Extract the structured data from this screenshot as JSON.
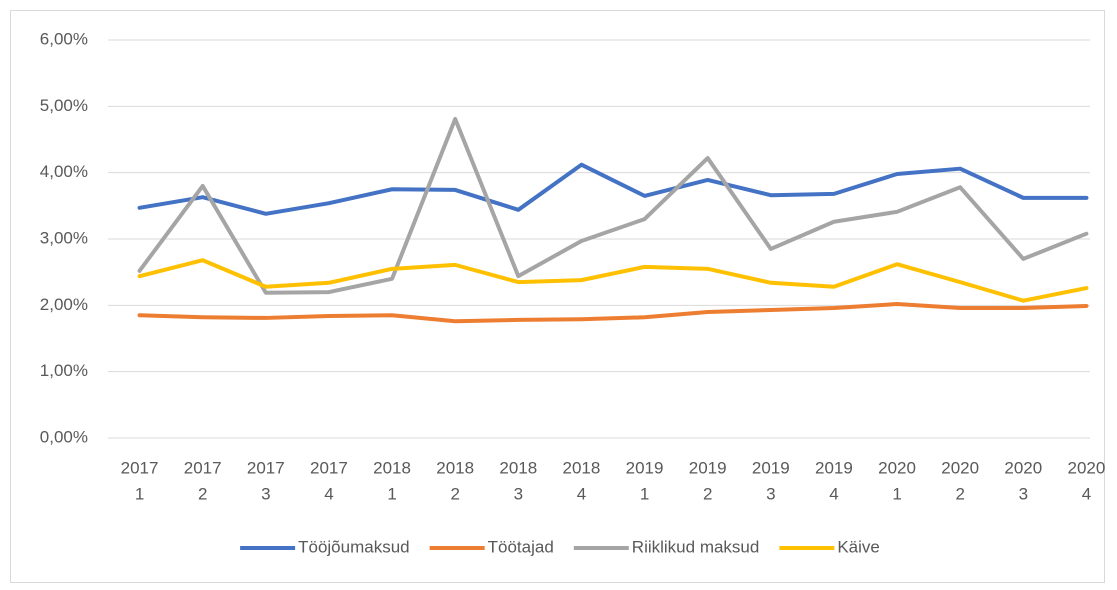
{
  "chart_data": {
    "type": "line",
    "categories": [
      [
        "2017",
        "1"
      ],
      [
        "2017",
        "2"
      ],
      [
        "2017",
        "3"
      ],
      [
        "2017",
        "4"
      ],
      [
        "2018",
        "1"
      ],
      [
        "2018",
        "2"
      ],
      [
        "2018",
        "3"
      ],
      [
        "2018",
        "4"
      ],
      [
        "2019",
        "1"
      ],
      [
        "2019",
        "2"
      ],
      [
        "2019",
        "3"
      ],
      [
        "2019",
        "4"
      ],
      [
        "2020",
        "1"
      ],
      [
        "2020",
        "2"
      ],
      [
        "2020",
        "3"
      ],
      [
        "2020",
        "4"
      ]
    ],
    "series": [
      {
        "name": "Tööjõumaksud",
        "color": "#4472c4",
        "values": [
          3.47,
          3.63,
          3.38,
          3.54,
          3.75,
          3.74,
          3.44,
          4.12,
          3.65,
          3.89,
          3.66,
          3.68,
          3.98,
          4.06,
          3.62,
          3.62
        ]
      },
      {
        "name": "Töötajad",
        "color": "#ed7d31",
        "values": [
          1.85,
          1.82,
          1.81,
          1.84,
          1.85,
          1.76,
          1.78,
          1.79,
          1.82,
          1.9,
          1.93,
          1.96,
          2.02,
          1.96,
          1.96,
          1.99
        ]
      },
      {
        "name": "Riiklikud maksud",
        "color": "#a5a5a5",
        "values": [
          2.52,
          3.8,
          2.19,
          2.2,
          2.4,
          4.81,
          2.44,
          2.97,
          3.3,
          4.22,
          2.85,
          3.26,
          3.41,
          3.78,
          2.7,
          3.08
        ]
      },
      {
        "name": "Käive",
        "color": "#ffc000",
        "values": [
          2.44,
          2.68,
          2.28,
          2.34,
          2.55,
          2.61,
          2.35,
          2.38,
          2.58,
          2.55,
          2.34,
          2.28,
          2.62,
          2.35,
          2.07,
          2.26
        ]
      }
    ],
    "ylim": [
      0,
      6
    ],
    "yticks": [
      {
        "value": 0,
        "label": "0,00%"
      },
      {
        "value": 1,
        "label": "1,00%"
      },
      {
        "value": 2,
        "label": "2,00%"
      },
      {
        "value": 3,
        "label": "3,00%"
      },
      {
        "value": 4,
        "label": "4,00%"
      },
      {
        "value": 5,
        "label": "5,00%"
      },
      {
        "value": 6,
        "label": "6,00%"
      }
    ],
    "grid": true,
    "legend": "bottom"
  }
}
